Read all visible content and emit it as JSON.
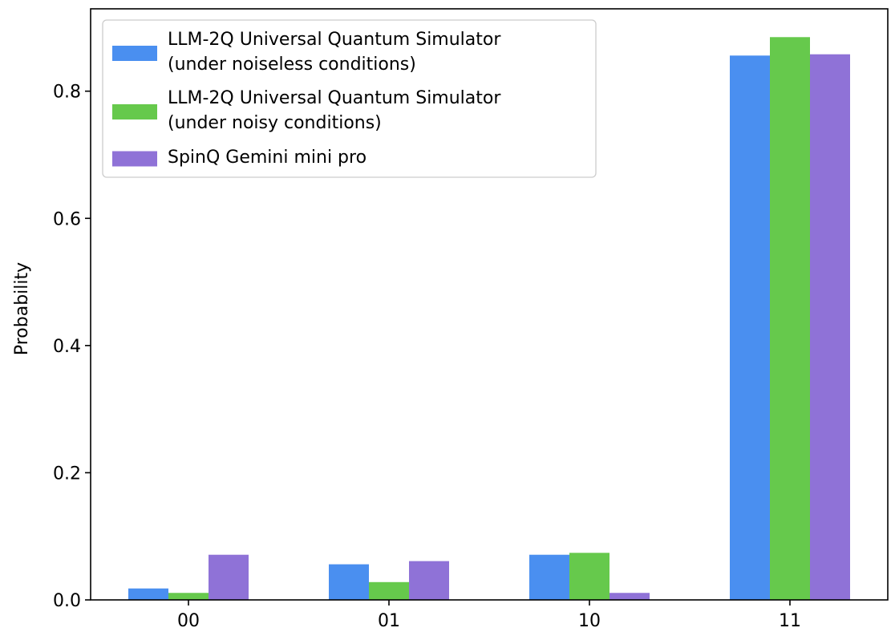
{
  "chart_data": {
    "type": "bar",
    "title": "",
    "xlabel": "",
    "ylabel": "Probability",
    "categories": [
      "00",
      "01",
      "10",
      "11"
    ],
    "ylim": [
      0,
      0.9295
    ],
    "yticks": [
      0.0,
      0.2,
      0.4,
      0.6,
      0.8
    ],
    "grid": false,
    "legend_position": "top-left",
    "series": [
      {
        "name": "LLM-2Q Universal Quantum Simulator\n(under noiseless conditions)",
        "name_lines": [
          "LLM-2Q Universal Quantum Simulator",
          "(under noiseless conditions)"
        ],
        "color": "#4a8ff0",
        "values": [
          0.018,
          0.056,
          0.071,
          0.856
        ]
      },
      {
        "name": "LLM-2Q Universal Quantum Simulator\n(under noisy conditions)",
        "name_lines": [
          "LLM-2Q Universal Quantum Simulator",
          "(under noisy conditions)"
        ],
        "color": "#66c94c",
        "values": [
          0.011,
          0.028,
          0.074,
          0.885
        ]
      },
      {
        "name": "SpinQ Gemini mini pro",
        "name_lines": [
          "SpinQ Gemini mini pro"
        ],
        "color": "#8f72d7",
        "values": [
          0.071,
          0.061,
          0.011,
          0.858
        ]
      }
    ]
  }
}
